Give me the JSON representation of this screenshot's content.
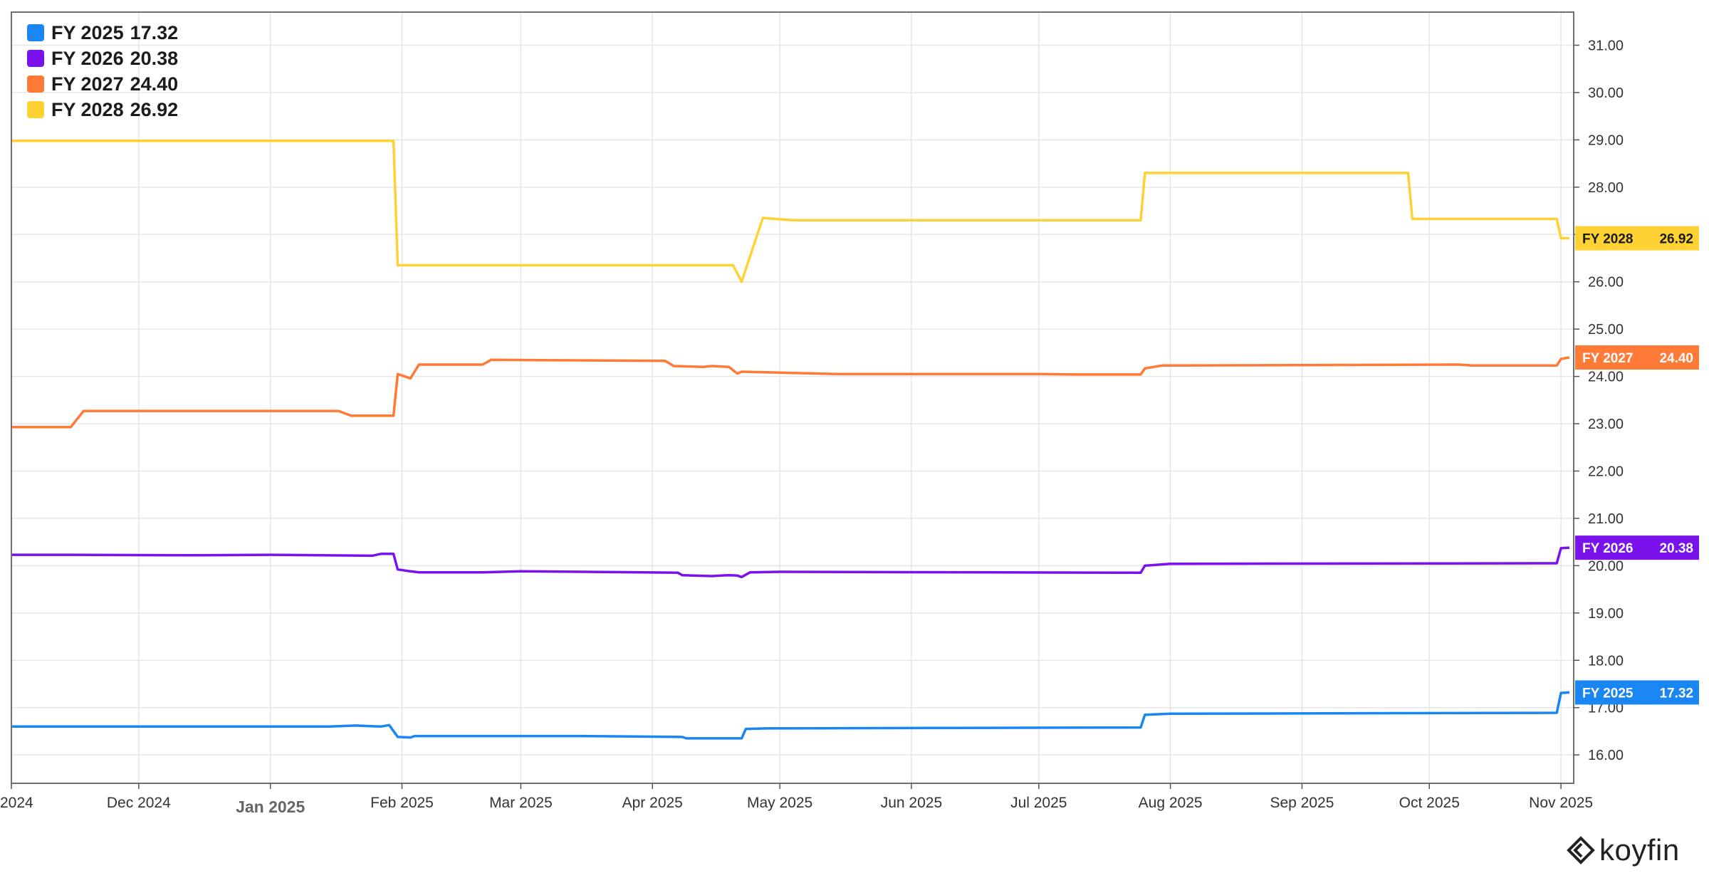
{
  "legend": [
    {
      "label": "FY 2025",
      "value": "17.32",
      "color": "#1a86f2"
    },
    {
      "label": "FY 2026",
      "value": "20.38",
      "color": "#7a12ec"
    },
    {
      "label": "FY 2027",
      "value": "24.40",
      "color": "#ff7a36"
    },
    {
      "label": "FY 2028",
      "value": "26.92",
      "color": "#ffd233"
    }
  ],
  "brand": {
    "name": "koyfin"
  },
  "chart_data": {
    "type": "line",
    "y_axis_position": "right",
    "ylim": [
      15.4,
      31.7
    ],
    "y_ticks": [
      "16.00",
      "17.00",
      "18.00",
      "19.00",
      "20.00",
      "21.00",
      "22.00",
      "23.00",
      "24.00",
      "25.00",
      "26.00",
      "27.00",
      "28.00",
      "29.00",
      "30.00",
      "31.00"
    ],
    "y_tick_values": [
      16,
      17,
      18,
      19,
      20,
      21,
      22,
      23,
      24,
      25,
      26,
      27,
      28,
      29,
      30,
      31
    ],
    "x_range": [
      "2024-11-01",
      "2025-11-04"
    ],
    "x_ticks": [
      {
        "label": "2024",
        "date": "2024-11-01",
        "major": false
      },
      {
        "label": "Dec 2024",
        "date": "2024-12-01",
        "major": false
      },
      {
        "label": "Jan 2025",
        "date": "2025-01-01",
        "major": true
      },
      {
        "label": "Feb 2025",
        "date": "2025-02-01",
        "major": false
      },
      {
        "label": "Mar 2025",
        "date": "2025-03-01",
        "major": false
      },
      {
        "label": "Apr 2025",
        "date": "2025-04-01",
        "major": false
      },
      {
        "label": "May 2025",
        "date": "2025-05-01",
        "major": false
      },
      {
        "label": "Jun 2025",
        "date": "2025-06-01",
        "major": false
      },
      {
        "label": "Jul 2025",
        "date": "2025-07-01",
        "major": false
      },
      {
        "label": "Aug 2025",
        "date": "2025-08-01",
        "major": false
      },
      {
        "label": "Sep 2025",
        "date": "2025-09-01",
        "major": false
      },
      {
        "label": "Oct 2025",
        "date": "2025-10-01",
        "major": false
      },
      {
        "label": "Nov 2025",
        "date": "2025-11-01",
        "major": false
      }
    ],
    "grid": true,
    "legend_position": "top-left",
    "series": [
      {
        "name": "FY 2025",
        "tag": "FY 2025",
        "last": "17.32",
        "color": "#1a86f2",
        "points": [
          [
            "2024-11-01",
            16.6
          ],
          [
            "2025-01-15",
            16.6
          ],
          [
            "2025-01-21",
            16.62
          ],
          [
            "2025-01-27",
            16.6
          ],
          [
            "2025-01-29",
            16.63
          ],
          [
            "2025-01-31",
            16.38
          ],
          [
            "2025-02-03",
            16.37
          ],
          [
            "2025-02-04",
            16.4
          ],
          [
            "2025-03-15",
            16.4
          ],
          [
            "2025-04-08",
            16.38
          ],
          [
            "2025-04-09",
            16.35
          ],
          [
            "2025-04-22",
            16.35
          ],
          [
            "2025-04-23",
            16.55
          ],
          [
            "2025-04-28",
            16.56
          ],
          [
            "2025-07-25",
            16.58
          ],
          [
            "2025-07-26",
            16.85
          ],
          [
            "2025-08-01",
            16.87
          ],
          [
            "2025-10-31",
            16.89
          ],
          [
            "2025-11-01",
            17.31
          ],
          [
            "2025-11-03",
            17.32
          ]
        ]
      },
      {
        "name": "FY 2026",
        "tag": "FY 2026",
        "last": "20.38",
        "color": "#7a12ec",
        "points": [
          [
            "2024-11-01",
            20.23
          ],
          [
            "2024-11-15",
            20.23
          ],
          [
            "2024-12-15",
            20.22
          ],
          [
            "2025-01-01",
            20.23
          ],
          [
            "2025-01-25",
            20.21
          ],
          [
            "2025-01-27",
            20.25
          ],
          [
            "2025-01-30",
            20.25
          ],
          [
            "2025-01-31",
            19.92
          ],
          [
            "2025-02-03",
            19.88
          ],
          [
            "2025-02-05",
            19.86
          ],
          [
            "2025-02-20",
            19.86
          ],
          [
            "2025-03-01",
            19.88
          ],
          [
            "2025-03-30",
            19.86
          ],
          [
            "2025-04-07",
            19.85
          ],
          [
            "2025-04-08",
            19.8
          ],
          [
            "2025-04-15",
            19.78
          ],
          [
            "2025-04-19",
            19.8
          ],
          [
            "2025-04-21",
            19.79
          ],
          [
            "2025-04-22",
            19.76
          ],
          [
            "2025-04-24",
            19.86
          ],
          [
            "2025-05-01",
            19.87
          ],
          [
            "2025-07-25",
            19.85
          ],
          [
            "2025-07-26",
            20.0
          ],
          [
            "2025-08-01",
            20.04
          ],
          [
            "2025-10-31",
            20.05
          ],
          [
            "2025-11-01",
            20.37
          ],
          [
            "2025-11-03",
            20.38
          ]
        ]
      },
      {
        "name": "FY 2027",
        "tag": "FY 2027",
        "last": "24.40",
        "color": "#ff7a36",
        "points": [
          [
            "2024-11-01",
            22.93
          ],
          [
            "2024-11-15",
            22.93
          ],
          [
            "2024-11-18",
            23.27
          ],
          [
            "2025-01-17",
            23.27
          ],
          [
            "2025-01-20",
            23.17
          ],
          [
            "2025-01-30",
            23.17
          ],
          [
            "2025-01-31",
            24.05
          ],
          [
            "2025-02-03",
            23.96
          ],
          [
            "2025-02-05",
            24.25
          ],
          [
            "2025-02-20",
            24.25
          ],
          [
            "2025-02-22",
            24.35
          ],
          [
            "2025-04-04",
            24.33
          ],
          [
            "2025-04-06",
            24.22
          ],
          [
            "2025-04-13",
            24.2
          ],
          [
            "2025-04-15",
            24.22
          ],
          [
            "2025-04-19",
            24.2
          ],
          [
            "2025-04-21",
            24.06
          ],
          [
            "2025-04-22",
            24.1
          ],
          [
            "2025-05-01",
            24.08
          ],
          [
            "2025-05-15",
            24.05
          ],
          [
            "2025-07-01",
            24.05
          ],
          [
            "2025-07-10",
            24.04
          ],
          [
            "2025-07-25",
            24.04
          ],
          [
            "2025-07-26",
            24.17
          ],
          [
            "2025-07-30",
            24.23
          ],
          [
            "2025-10-08",
            24.25
          ],
          [
            "2025-10-11",
            24.23
          ],
          [
            "2025-10-31",
            24.23
          ],
          [
            "2025-11-01",
            24.37
          ],
          [
            "2025-11-03",
            24.4
          ]
        ]
      },
      {
        "name": "FY 2028",
        "tag": "FY 2028",
        "last": "26.92",
        "color": "#ffd233",
        "points": [
          [
            "2024-11-01",
            28.98
          ],
          [
            "2025-01-30",
            28.98
          ],
          [
            "2025-01-31",
            26.35
          ],
          [
            "2025-04-20",
            26.35
          ],
          [
            "2025-04-22",
            26.0
          ],
          [
            "2025-04-27",
            27.35
          ],
          [
            "2025-05-04",
            27.3
          ],
          [
            "2025-07-25",
            27.3
          ],
          [
            "2025-07-26",
            28.3
          ],
          [
            "2025-09-26",
            28.3
          ],
          [
            "2025-09-27",
            27.33
          ],
          [
            "2025-10-31",
            27.33
          ],
          [
            "2025-11-01",
            26.92
          ],
          [
            "2025-11-03",
            26.92
          ]
        ]
      }
    ]
  }
}
